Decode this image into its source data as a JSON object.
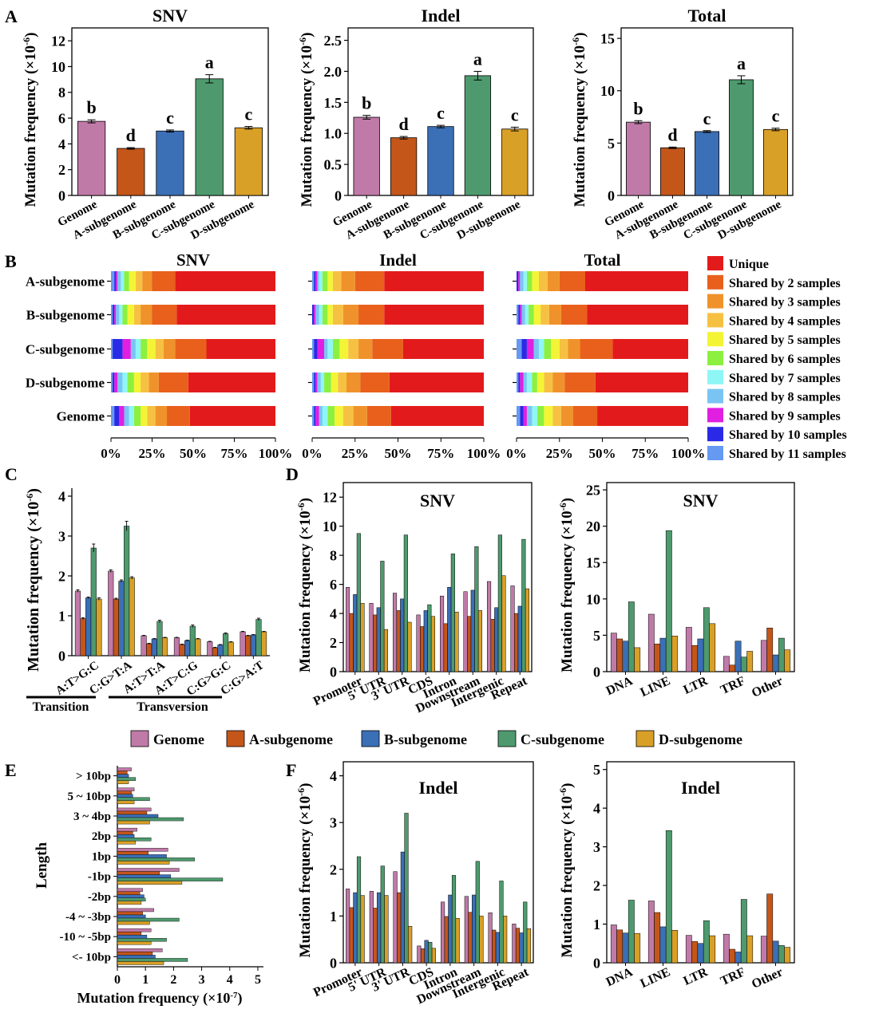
{
  "colors": {
    "Genome": "#c07aa8",
    "A-subgenome": "#c4561a",
    "B-subgenome": "#3b6fb6",
    "C-subgenome": "#4e9a6e",
    "D-subgenome": "#d9a028"
  },
  "legend_main": [
    "Genome",
    "A-subgenome",
    "B-subgenome",
    "C-subgenome",
    "D-subgenome"
  ],
  "panel_letters": [
    "A",
    "B",
    "C",
    "D",
    "E",
    "F"
  ],
  "group_labels": {
    "transition": "Transition",
    "transversion": "Transversion"
  },
  "axis_texts": {
    "mutation_frequency_e6": "Mutation frequency (×10",
    "exp_minus6": "-6",
    "close_paren": ")",
    "length": "Length",
    "mutation_frequency_e7": "Mutation frequency (×10",
    "exp_minus7": "-7"
  },
  "chart_data": [
    {
      "panel": "A",
      "type": "bar",
      "title": "SNV",
      "categories": [
        "Genome",
        "A-subgenome",
        "B-subgenome",
        "C-subgenome",
        "D-subgenome"
      ],
      "values": [
        5.75,
        3.65,
        5.0,
        9.05,
        5.25
      ],
      "errors": [
        0.12,
        0.06,
        0.08,
        0.32,
        0.1
      ],
      "letters": [
        "b",
        "d",
        "c",
        "a",
        "c"
      ],
      "ylim": [
        0,
        13
      ],
      "yticks": [
        "0",
        "2",
        "4",
        "6",
        "8",
        "10",
        "12"
      ],
      "ytickvals": [
        0,
        2,
        4,
        6,
        8,
        10,
        12
      ]
    },
    {
      "panel": "A",
      "type": "bar",
      "title": "Indel",
      "categories": [
        "Genome",
        "A-subgenome",
        "B-subgenome",
        "C-subgenome",
        "D-subgenome"
      ],
      "values": [
        1.26,
        0.93,
        1.11,
        1.93,
        1.07
      ],
      "errors": [
        0.03,
        0.02,
        0.02,
        0.07,
        0.03
      ],
      "letters": [
        "b",
        "d",
        "c",
        "a",
        "c"
      ],
      "ylim": [
        0,
        2.7
      ],
      "yticks": [
        "0",
        "0.5",
        "1.0",
        "1.5",
        "2.0",
        "2.5"
      ],
      "ytickvals": [
        0,
        0.5,
        1.0,
        1.5,
        2.0,
        2.5
      ]
    },
    {
      "panel": "A",
      "type": "bar",
      "title": "Total",
      "categories": [
        "Genome",
        "A-subgenome",
        "B-subgenome",
        "C-subgenome",
        "D-subgenome"
      ],
      "values": [
        7.0,
        4.55,
        6.1,
        11.05,
        6.3
      ],
      "errors": [
        0.14,
        0.07,
        0.09,
        0.38,
        0.12
      ],
      "letters": [
        "b",
        "d",
        "c",
        "a",
        "c"
      ],
      "ylim": [
        0,
        16
      ],
      "yticks": [
        "0",
        "5",
        "10",
        "15"
      ],
      "ytickvals": [
        0,
        5,
        10,
        15
      ]
    },
    {
      "panel": "B",
      "type": "bar",
      "orientation": "stacked-horizontal-percent",
      "categories": [
        "A-subgenome",
        "B-subgenome",
        "C-subgenome",
        "D-subgenome",
        "Genome"
      ],
      "legend": [
        "Unique",
        "Shared by 2 samples",
        "Shared by 3 samples",
        "Shared by 4 samples",
        "Shared by 5 samples",
        "Shared by 6 samples",
        "Shared by 7 samples",
        "Shared by 8 samples",
        "Shared by 9 samples",
        "Shared by 10 samples",
        "Shared by 11 samples"
      ],
      "legend_colors": [
        "#e31a1c",
        "#e8601c",
        "#f0922b",
        "#f6c142",
        "#f4f436",
        "#8cf040",
        "#8ff6f6",
        "#7ac4f4",
        "#e01fe0",
        "#2a2ae6",
        "#6699f2"
      ],
      "xticks": [
        "0%",
        "25%",
        "50%",
        "75%",
        "100%"
      ],
      "charts": [
        {
          "title": "SNV",
          "values": [
            [
              61,
              14,
              6,
              4,
              4,
              3,
              2,
              2,
              1,
              1,
              2
            ],
            [
              60,
              15,
              7,
              4,
              4,
              3,
              2,
              2,
              1,
              1,
              1
            ],
            [
              42,
              19,
              7,
              5,
              5,
              4,
              3,
              3,
              5,
              6,
              1
            ],
            [
              53,
              18,
              6,
              5,
              4,
              4,
              3,
              3,
              2,
              1,
              1
            ],
            [
              52,
              14,
              7,
              5,
              4,
              4,
              3,
              3,
              3,
              3,
              2
            ]
          ]
        },
        {
          "title": "Indel",
          "values": [
            [
              58,
              17,
              8,
              5,
              3,
              3,
              2,
              1,
              1,
              1,
              1
            ],
            [
              58,
              15,
              9,
              6,
              3,
              3,
              2,
              2,
              1,
              1,
              0
            ],
            [
              47,
              18,
              8,
              6,
              5,
              4,
              3,
              2,
              4,
              2,
              1
            ],
            [
              55,
              17,
              8,
              5,
              4,
              4,
              2,
              2,
              1,
              1,
              1
            ],
            [
              54,
              14,
              8,
              6,
              5,
              4,
              3,
              2,
              2,
              1,
              1
            ]
          ]
        },
        {
          "title": "Total",
          "values": [
            [
              60,
              15,
              7,
              5,
              4,
              3,
              2,
              2,
              1,
              1,
              0
            ],
            [
              59,
              15,
              7,
              5,
              4,
              3,
              2,
              2,
              1,
              1,
              1
            ],
            [
              44,
              19,
              7,
              5,
              5,
              4,
              3,
              3,
              4,
              3,
              3
            ],
            [
              54,
              18,
              7,
              5,
              4,
              3,
              3,
              2,
              2,
              1,
              1
            ],
            [
              53,
              14,
              7,
              5,
              5,
              4,
              3,
              3,
              2,
              2,
              2
            ]
          ]
        }
      ]
    },
    {
      "panel": "C",
      "type": "bar",
      "categories": [
        "A:T>G:C",
        "C:G>T:A",
        "A:T>T:A",
        "A:T>C:G",
        "C:G>G:C",
        "C:G>A:T"
      ],
      "series": [
        {
          "name": "Genome",
          "values": [
            1.62,
            2.12,
            0.5,
            0.45,
            0.35,
            0.6
          ],
          "errors": [
            0.03,
            0.03,
            0.01,
            0.01,
            0.01,
            0.01
          ]
        },
        {
          "name": "A-subgenome",
          "values": [
            0.93,
            1.42,
            0.3,
            0.28,
            0.2,
            0.5
          ],
          "errors": [
            0.02,
            0.02,
            0.01,
            0.01,
            0.01,
            0.01
          ]
        },
        {
          "name": "B-subgenome",
          "values": [
            1.45,
            1.87,
            0.42,
            0.38,
            0.27,
            0.52
          ],
          "errors": [
            0.02,
            0.03,
            0.01,
            0.01,
            0.01,
            0.01
          ]
        },
        {
          "name": "C-subgenome",
          "values": [
            2.7,
            3.25,
            0.86,
            0.74,
            0.55,
            0.91
          ],
          "errors": [
            0.1,
            0.12,
            0.03,
            0.03,
            0.02,
            0.03
          ]
        },
        {
          "name": "D-subgenome",
          "values": [
            1.42,
            1.95,
            0.45,
            0.42,
            0.34,
            0.6
          ],
          "errors": [
            0.03,
            0.03,
            0.01,
            0.01,
            0.01,
            0.01
          ]
        }
      ],
      "ylim": [
        0,
        4.2
      ],
      "yticks": [
        "0",
        "1",
        "2",
        "3",
        "4"
      ],
      "ytickvals": [
        0,
        1,
        2,
        3,
        4
      ]
    },
    {
      "panel": "D",
      "type": "bar",
      "title": "SNV",
      "categories": [
        "Promoter",
        "5' UTR",
        "3' UTR",
        "CDS",
        "Intron",
        "Downstream",
        "Intergenic",
        "Repeat"
      ],
      "series": [
        {
          "name": "Genome",
          "values": [
            5.8,
            4.7,
            5.4,
            3.9,
            5.2,
            5.5,
            6.2,
            5.9
          ]
        },
        {
          "name": "A-subgenome",
          "values": [
            4.0,
            3.9,
            4.2,
            3.1,
            3.3,
            3.8,
            3.6,
            4.0
          ]
        },
        {
          "name": "B-subgenome",
          "values": [
            5.3,
            4.4,
            5.0,
            4.2,
            5.8,
            5.6,
            4.4,
            4.5
          ]
        },
        {
          "name": "C-subgenome",
          "values": [
            9.5,
            7.6,
            9.4,
            4.6,
            8.1,
            8.6,
            9.4,
            9.1
          ]
        },
        {
          "name": "D-subgenome",
          "values": [
            4.7,
            2.9,
            3.4,
            3.8,
            4.1,
            4.2,
            6.6,
            5.7
          ]
        }
      ],
      "ylim": [
        0,
        13
      ],
      "yticks": [
        "0",
        "2",
        "4",
        "6",
        "8",
        "10",
        "12"
      ],
      "ytickvals": [
        0,
        2,
        4,
        6,
        8,
        10,
        12
      ]
    },
    {
      "panel": "D",
      "type": "bar",
      "title": "SNV",
      "categories": [
        "DNA",
        "LINE",
        "LTR",
        "TRF",
        "Other"
      ],
      "series": [
        {
          "name": "Genome",
          "values": [
            5.3,
            7.9,
            6.1,
            2.1,
            4.3
          ]
        },
        {
          "name": "A-subgenome",
          "values": [
            4.5,
            3.8,
            3.6,
            0.9,
            6.0
          ]
        },
        {
          "name": "B-subgenome",
          "values": [
            4.2,
            4.6,
            4.5,
            4.2,
            2.3
          ]
        },
        {
          "name": "C-subgenome",
          "values": [
            9.6,
            19.4,
            8.8,
            2.0,
            4.6
          ]
        },
        {
          "name": "D-subgenome",
          "values": [
            3.3,
            4.9,
            6.6,
            2.8,
            3.0
          ]
        }
      ],
      "ylim": [
        0,
        26
      ],
      "yticks": [
        "0",
        "5",
        "10",
        "15",
        "20",
        "25"
      ],
      "ytickvals": [
        0,
        5,
        10,
        15,
        20,
        25
      ]
    },
    {
      "panel": "E",
      "type": "bar",
      "orientation": "horizontal",
      "categories": [
        "> 10bp",
        "5 ~ 10bp",
        "3 ~ 4bp",
        "2bp",
        "1bp",
        "-1bp",
        "-2bp",
        "-4 ~ -3bp",
        "-10 ~ -5bp",
        "<- 10bp"
      ],
      "series": [
        {
          "name": "Genome",
          "values": [
            0.5,
            0.6,
            1.2,
            0.7,
            1.8,
            2.2,
            0.9,
            1.3,
            1.2,
            1.6
          ]
        },
        {
          "name": "A-subgenome",
          "values": [
            0.35,
            0.5,
            1.05,
            0.55,
            1.1,
            1.5,
            0.8,
            0.9,
            0.85,
            1.25
          ]
        },
        {
          "name": "B-subgenome",
          "values": [
            0.4,
            0.55,
            1.45,
            0.6,
            1.75,
            1.9,
            0.95,
            1.0,
            1.05,
            1.35
          ]
        },
        {
          "name": "C-subgenome",
          "values": [
            0.65,
            1.15,
            2.35,
            1.2,
            2.75,
            3.75,
            1.0,
            2.2,
            1.75,
            2.5
          ]
        },
        {
          "name": "D-subgenome",
          "values": [
            0.4,
            0.6,
            1.15,
            0.65,
            1.85,
            2.3,
            0.85,
            1.15,
            1.2,
            1.65
          ]
        }
      ],
      "xlim": [
        0,
        5.2
      ],
      "xticks": [
        "0",
        "1",
        "2",
        "3",
        "4",
        "5"
      ],
      "xtickvals": [
        0,
        1,
        2,
        3,
        4,
        5
      ]
    },
    {
      "panel": "F",
      "type": "bar",
      "title": "Indel",
      "categories": [
        "Promoter",
        "5' UTR",
        "3' UTR",
        "CDS",
        "Intron",
        "Downstream",
        "Intergenic",
        "Repeat"
      ],
      "series": [
        {
          "name": "Genome",
          "values": [
            1.58,
            1.53,
            1.95,
            0.36,
            1.3,
            1.42,
            1.07,
            0.83
          ]
        },
        {
          "name": "A-subgenome",
          "values": [
            1.18,
            1.17,
            1.5,
            0.3,
            0.99,
            1.08,
            0.7,
            0.74
          ]
        },
        {
          "name": "B-subgenome",
          "values": [
            1.5,
            1.5,
            2.37,
            0.48,
            1.45,
            1.45,
            0.65,
            0.64
          ]
        },
        {
          "name": "C-subgenome",
          "values": [
            2.27,
            2.07,
            3.2,
            0.44,
            1.87,
            2.17,
            1.75,
            1.3
          ]
        },
        {
          "name": "D-subgenome",
          "values": [
            1.44,
            1.44,
            0.78,
            0.31,
            0.95,
            1.0,
            1.0,
            0.73
          ]
        }
      ],
      "ylim": [
        0,
        4.3
      ],
      "yticks": [
        "0",
        "1",
        "2",
        "3",
        "4"
      ],
      "ytickvals": [
        0,
        1,
        2,
        3,
        4
      ]
    },
    {
      "panel": "F",
      "type": "bar",
      "title": "Indel",
      "categories": [
        "DNA",
        "LINE",
        "LTR",
        "TRF",
        "Other"
      ],
      "series": [
        {
          "name": "Genome",
          "values": [
            0.98,
            1.6,
            0.71,
            0.74,
            0.69
          ]
        },
        {
          "name": "A-subgenome",
          "values": [
            0.85,
            1.3,
            0.55,
            0.35,
            1.78
          ]
        },
        {
          "name": "B-subgenome",
          "values": [
            0.77,
            0.93,
            0.5,
            0.28,
            0.56
          ]
        },
        {
          "name": "C-subgenome",
          "values": [
            1.62,
            3.42,
            1.09,
            1.64,
            0.45
          ]
        },
        {
          "name": "D-subgenome",
          "values": [
            0.76,
            0.84,
            0.7,
            0.7,
            0.4
          ]
        }
      ],
      "ylim": [
        0,
        5.2
      ],
      "yticks": [
        "0",
        "1",
        "2",
        "3",
        "4",
        "5"
      ],
      "ytickvals": [
        0,
        1,
        2,
        3,
        4,
        5
      ]
    }
  ]
}
